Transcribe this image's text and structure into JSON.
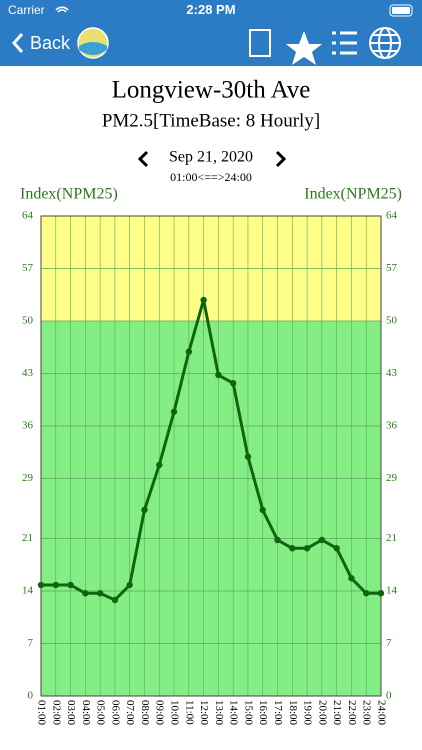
{
  "status_bar": {
    "carrier": "Carrier",
    "time": "2:28 PM"
  },
  "nav": {
    "back": "Back"
  },
  "chart_data": {
    "type": "line",
    "title": "Longview-30th Ave",
    "subtitle": "PM2.5[TimeBase: 8 Hourly]",
    "date": "Sep 21, 2020",
    "range": "01:00<==>24:00",
    "y_label": "Index(NPM25)",
    "y2_label": "Index(NPM25)",
    "categories": [
      "01:00",
      "02:00",
      "03:00",
      "04:00",
      "05:00",
      "06:00",
      "07:00",
      "08:00",
      "09:00",
      "10:00",
      "11:00",
      "12:00",
      "13:00",
      "14:00",
      "15:00",
      "16:00",
      "17:00",
      "18:00",
      "19:00",
      "20:00",
      "21:00",
      "22:00",
      "23:00",
      "24:00"
    ],
    "values": [
      14.8,
      14.8,
      14.8,
      13.7,
      13.7,
      12.8,
      14.8,
      24.8,
      30.8,
      37.9,
      45.9,
      52.8,
      42.8,
      41.7,
      31.9,
      24.8,
      20.8,
      19.7,
      19.7,
      20.8,
      19.7,
      15.7,
      13.7,
      13.7
    ],
    "color": "#0f6410",
    "ylim": [
      0,
      64
    ],
    "yticks": [
      0,
      7,
      14,
      21,
      29,
      36,
      43,
      50,
      57,
      64
    ],
    "y2lim": [
      0,
      64
    ],
    "y2ticks": [
      0,
      7,
      14,
      21,
      29,
      36,
      43,
      50,
      57,
      64
    ],
    "bands": [
      {
        "from": 0,
        "to": 50,
        "color": "#84ee84"
      },
      {
        "from": 50,
        "to": 64,
        "color": "#ffff88"
      }
    ],
    "grid": true
  }
}
